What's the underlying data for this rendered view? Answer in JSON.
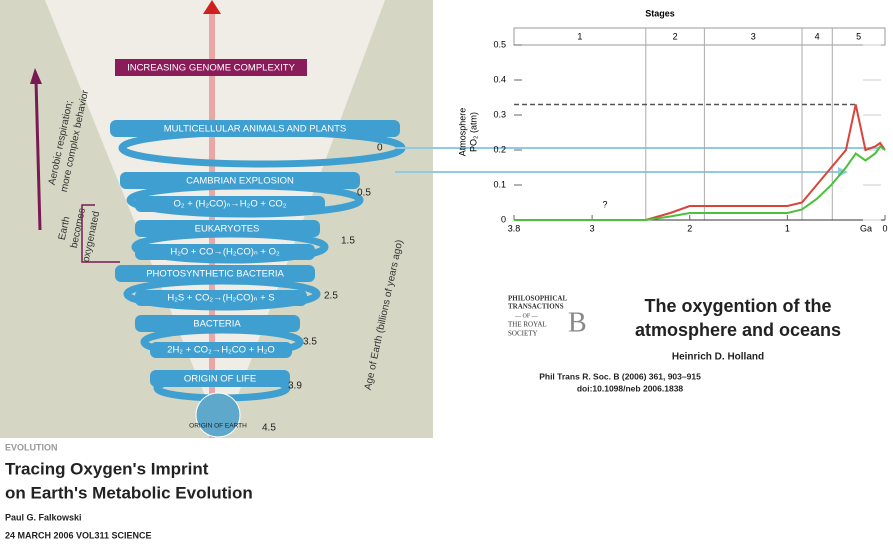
{
  "chart_data": {
    "type": "line",
    "title": "Stages",
    "stages": [
      "1",
      "2",
      "3",
      "4",
      "5"
    ],
    "stage_boundaries": [
      2.45,
      1.85,
      0.85,
      0.54
    ],
    "ylabel": "Atmosphere",
    "ylabel_sub": "PO₂ (atm)",
    "xlabel": "Ga",
    "annotation": "?",
    "x": [
      3.8,
      2.45,
      2.2,
      2.0,
      1.0,
      0.85,
      0.7,
      0.55,
      0.4,
      0.3,
      0.2,
      0.1,
      0.05,
      0
    ],
    "series": [
      {
        "color": "#d9443a",
        "values": [
          0,
          0,
          0.02,
          0.04,
          0.04,
          0.05,
          0.1,
          0.15,
          0.2,
          0.33,
          0.2,
          0.21,
          0.22,
          0.2
        ]
      },
      {
        "color": "#4cbf3c",
        "values": [
          0,
          0,
          0.01,
          0.02,
          0.02,
          0.03,
          0.06,
          0.1,
          0.15,
          0.19,
          0.17,
          0.19,
          0.21,
          0.2
        ]
      }
    ],
    "reference_line": 0.33,
    "xlim": [
      3.8,
      0
    ],
    "xticks": [
      3.8,
      3,
      2,
      1,
      0
    ],
    "ylim": [
      0,
      0.5
    ],
    "yticks": [
      0,
      0.1,
      0.2,
      0.3,
      0.4,
      0.5
    ]
  },
  "diagram": {
    "banner": "INCREASING GENOME COMPLEXITY",
    "bands": [
      "MULTICELLULAR ANIMALS AND PLANTS",
      "CAMBRIAN EXPLOSION",
      "O₂ + (H₂CO)ₙ→H₂O + CO₂",
      "EUKARYOTES",
      "H₂O + CO→(H₂CO)ₙ + O₂",
      "PHOTOSYNTHETIC BACTERIA",
      "H₂S + CO₂→(H₂CO)ₙ + S",
      "BACTERIA",
      "2H₂ + CO₂→H₂CO + H₂O",
      "ORIGIN OF LIFE"
    ],
    "earth": "ORIGIN OF EARTH",
    "ages": [
      "0",
      "0.5",
      "1.5",
      "2.5",
      "3.5",
      "3.9",
      "4.5"
    ],
    "age_axis": "Age of Earth (billions of years ago)",
    "side_top": [
      "Aerobic respiration;",
      "more complex behavior"
    ],
    "side_mid": [
      "Earth",
      "becomes",
      "oxygenated"
    ]
  },
  "left_caption": {
    "section": "EVOLUTION",
    "title": [
      "Tracing Oxygen's Imprint",
      "on Earth's Metabolic Evolution"
    ],
    "author": "Paul G. Falkowski",
    "source": "24 MARCH 2006 VOL311 SCIENCE"
  },
  "right_caption": {
    "logo": [
      "PHILOSOPHICAL",
      "TRANSACTIONS",
      "— OF —",
      "THE ROYAL",
      "SOCIETY",
      "B"
    ],
    "title": [
      "The oxygention of the",
      "atmosphere and oceans"
    ],
    "author": "Heinrich D. Holland",
    "source": [
      "Phil Trans R. Soc. B (2006) 361, 903–915",
      "doi:10.1098/neb 2006.1838"
    ]
  }
}
